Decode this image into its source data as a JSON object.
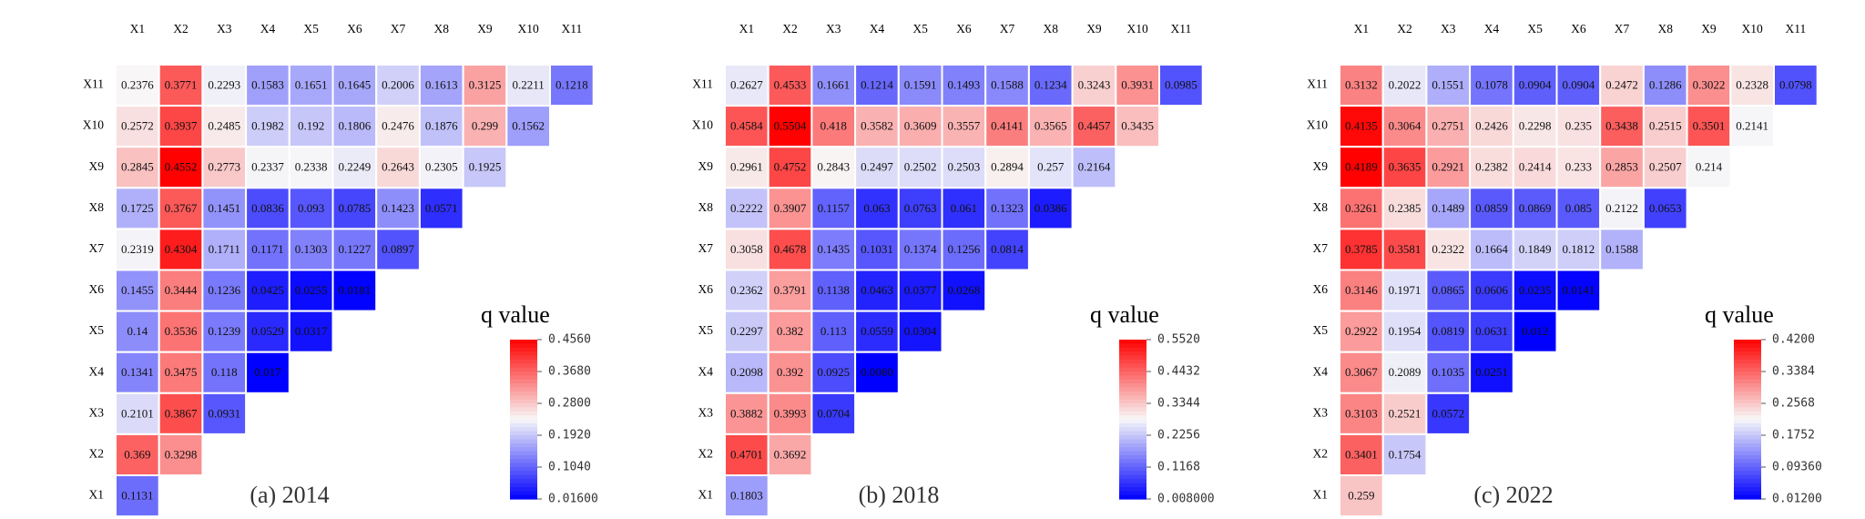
{
  "chart_data": [
    {
      "type": "heatmap",
      "title": "(a) 2014",
      "legend_title": "q value",
      "x_labels": [
        "X1",
        "X2",
        "X3",
        "X4",
        "X5",
        "X6",
        "X7",
        "X8",
        "X9",
        "X10",
        "X11"
      ],
      "y_labels": [
        "X11",
        "X10",
        "X9",
        "X8",
        "X7",
        "X6",
        "X5",
        "X4",
        "X3",
        "X2",
        "X1"
      ],
      "values": [
        [
          "0.2376",
          "0.3771",
          "0.2293",
          "0.1583",
          "0.1651",
          "0.1645",
          "0.2006",
          "0.1613",
          "0.3125",
          "0.2211",
          "0.1218"
        ],
        [
          "0.2572",
          "0.3937",
          "0.2485",
          "0.1982",
          "0.192",
          "0.1806",
          "0.2476",
          "0.1876",
          "0.299",
          "0.1562"
        ],
        [
          "0.2845",
          "0.4552",
          "0.2773",
          "0.2337",
          "0.2338",
          "0.2249",
          "0.2643",
          "0.2305",
          "0.1925"
        ],
        [
          "0.1725",
          "0.3767",
          "0.1451",
          "0.0836",
          "0.093",
          "0.0785",
          "0.1423",
          "0.0571"
        ],
        [
          "0.2319",
          "0.4304",
          "0.1711",
          "0.1171",
          "0.1303",
          "0.1227",
          "0.0897"
        ],
        [
          "0.1455",
          "0.3444",
          "0.1236",
          "0.0425",
          "0.0255",
          "0.0181"
        ],
        [
          "0.14",
          "0.3536",
          "0.1239",
          "0.0529",
          "0.0317"
        ],
        [
          "0.1341",
          "0.3475",
          "0.118",
          "0.017"
        ],
        [
          "0.2101",
          "0.3867",
          "0.0931"
        ],
        [
          "0.369",
          "0.3298"
        ],
        [
          "0.1131"
        ]
      ],
      "vmin": 0.016,
      "vmax": 0.456,
      "colorbar_ticks": [
        "0.4560",
        "0.3680",
        "0.2800",
        "0.1920",
        "0.1040",
        "0.01600"
      ]
    },
    {
      "type": "heatmap",
      "title": "(b) 2018",
      "legend_title": "q value",
      "x_labels": [
        "X1",
        "X2",
        "X3",
        "X4",
        "X5",
        "X6",
        "X7",
        "X8",
        "X9",
        "X10",
        "X11"
      ],
      "y_labels": [
        "X11",
        "X10",
        "X9",
        "X8",
        "X7",
        "X6",
        "X5",
        "X4",
        "X3",
        "X2",
        "X1"
      ],
      "values": [
        [
          "0.2627",
          "0.4533",
          "0.1661",
          "0.1214",
          "0.1591",
          "0.1493",
          "0.1588",
          "0.1234",
          "0.3243",
          "0.3931",
          "0.0985"
        ],
        [
          "0.4584",
          "0.5504",
          "0.418",
          "0.3582",
          "0.3609",
          "0.3557",
          "0.4141",
          "0.3565",
          "0.4457",
          "0.3435"
        ],
        [
          "0.2961",
          "0.4752",
          "0.2843",
          "0.2497",
          "0.2502",
          "0.2503",
          "0.2894",
          "0.257",
          "0.2164"
        ],
        [
          "0.2222",
          "0.3907",
          "0.1157",
          "0.063",
          "0.0763",
          "0.061",
          "0.1323",
          "0.0386"
        ],
        [
          "0.3058",
          "0.4678",
          "0.1435",
          "0.1031",
          "0.1374",
          "0.1256",
          "0.0814"
        ],
        [
          "0.2362",
          "0.3791",
          "0.1138",
          "0.0463",
          "0.0377",
          "0.0268"
        ],
        [
          "0.2297",
          "0.382",
          "0.113",
          "0.0559",
          "0.0304"
        ],
        [
          "0.2098",
          "0.392",
          "0.0925",
          "0.0080"
        ],
        [
          "0.3882",
          "0.3993",
          "0.0704"
        ],
        [
          "0.4701",
          "0.3692"
        ],
        [
          "0.1803"
        ]
      ],
      "vmin": 0.008,
      "vmax": 0.552,
      "colorbar_ticks": [
        "0.5520",
        "0.4432",
        "0.3344",
        "0.2256",
        "0.1168",
        "0.008000"
      ]
    },
    {
      "type": "heatmap",
      "title": "(c) 2022",
      "legend_title": "q value",
      "x_labels": [
        "X1",
        "X2",
        "X3",
        "X4",
        "X5",
        "X6",
        "X7",
        "X8",
        "X9",
        "X10",
        "X11"
      ],
      "y_labels": [
        "X11",
        "X10",
        "X9",
        "X8",
        "X7",
        "X6",
        "X5",
        "X4",
        "X3",
        "X2",
        "X1"
      ],
      "values": [
        [
          "0.3132",
          "0.2022",
          "0.1551",
          "0.1078",
          "0.0904",
          "0.0904",
          "0.2472",
          "0.1286",
          "0.3022",
          "0.2328",
          "0.0798"
        ],
        [
          "0.4135",
          "0.3064",
          "0.2751",
          "0.2426",
          "0.2298",
          "0.235",
          "0.3438",
          "0.2515",
          "0.3501",
          "0.2141"
        ],
        [
          "0.4189",
          "0.3635",
          "0.2921",
          "0.2382",
          "0.2414",
          "0.233",
          "0.2853",
          "0.2507",
          "0.214"
        ],
        [
          "0.3261",
          "0.2385",
          "0.1489",
          "0.0859",
          "0.0869",
          "0.085",
          "0.2122",
          "0.0653"
        ],
        [
          "0.3785",
          "0.3581",
          "0.2322",
          "0.1664",
          "0.1849",
          "0.1812",
          "0.1588"
        ],
        [
          "0.3146",
          "0.1971",
          "0.0865",
          "0.0606",
          "0.0235",
          "0.0141"
        ],
        [
          "0.2922",
          "0.1954",
          "0.0819",
          "0.0631",
          "0.012"
        ],
        [
          "0.3067",
          "0.2089",
          "0.1035",
          "0.0251"
        ],
        [
          "0.3103",
          "0.2521",
          "0.0572"
        ],
        [
          "0.3401",
          "0.1754"
        ],
        [
          "0.259"
        ]
      ],
      "vmin": 0.012,
      "vmax": 0.42,
      "colorbar_ticks": [
        "0.4200",
        "0.3384",
        "0.2568",
        "0.1752",
        "0.09360",
        "0.01200"
      ]
    }
  ],
  "colors": {
    "low": "#0000ff",
    "mid": "#f8f8f8",
    "high": "#ff0000",
    "grid": "#ffffff"
  }
}
